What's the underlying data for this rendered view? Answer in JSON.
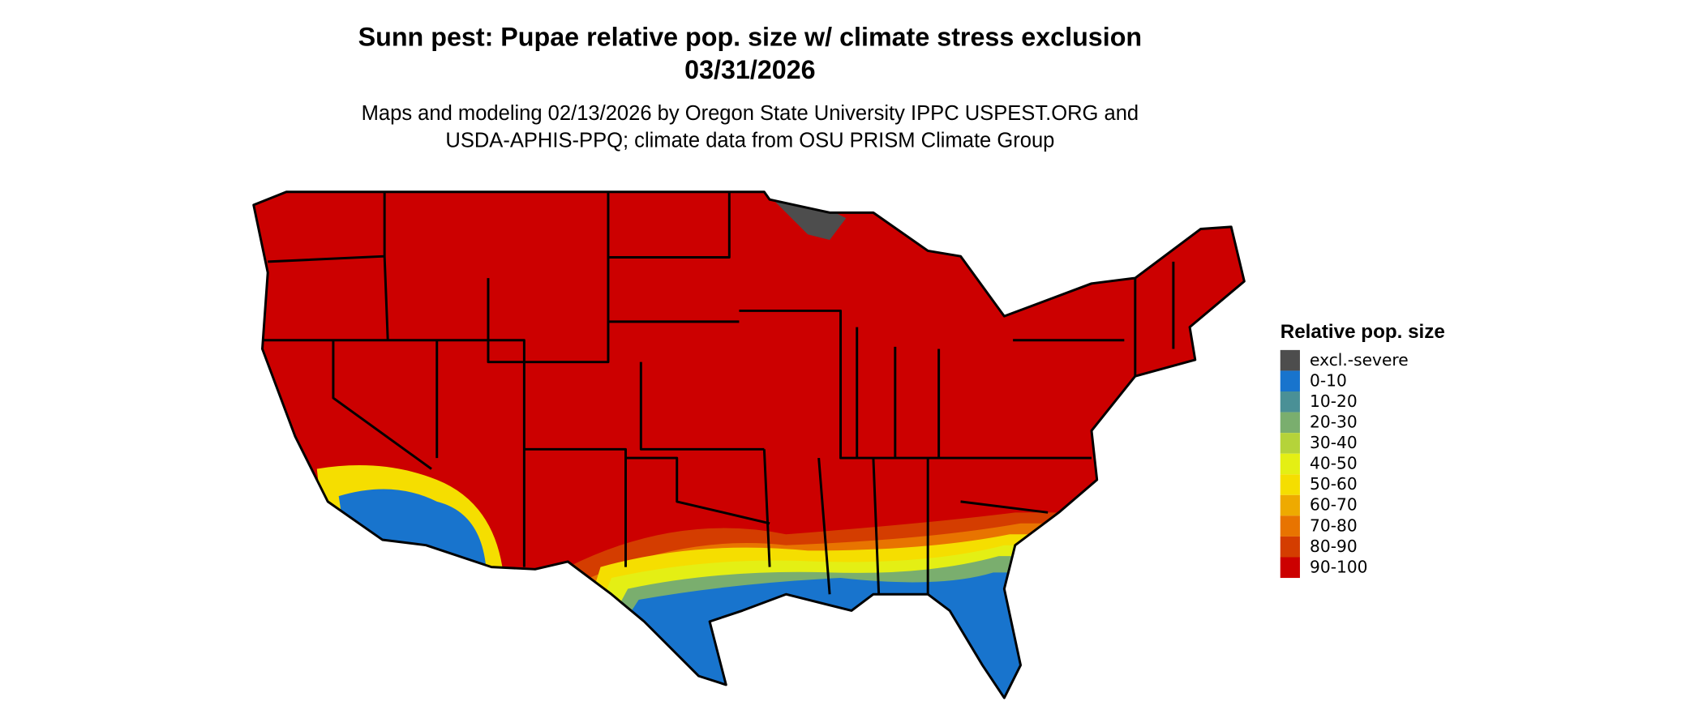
{
  "title_lines": [
    "Sunn pest: Pupae relative pop. size w/ climate stress exclusion",
    "03/31/2026"
  ],
  "subtitle_lines": [
    "Maps and modeling 02/13/2026 by Oregon State University IPPC USPEST.ORG and",
    "USDA-APHIS-PPQ; climate data from OSU PRISM Climate Group"
  ],
  "legend": {
    "title": "Relative pop. size",
    "items": [
      {
        "label": "excl.-severe",
        "color": "#4d4d4d"
      },
      {
        "label": "0-10",
        "color": "#1874cd"
      },
      {
        "label": "10-20",
        "color": "#4a9096"
      },
      {
        "label": "20-30",
        "color": "#7aae6e"
      },
      {
        "label": "30-40",
        "color": "#b5d33a"
      },
      {
        "label": "40-50",
        "color": "#e4ef14"
      },
      {
        "label": "50-60",
        "color": "#f5de00"
      },
      {
        "label": "60-70",
        "color": "#eeaa00"
      },
      {
        "label": "70-80",
        "color": "#e87400"
      },
      {
        "label": "80-90",
        "color": "#d43d00"
      },
      {
        "label": "90-100",
        "color": "#cc0000"
      }
    ]
  }
}
